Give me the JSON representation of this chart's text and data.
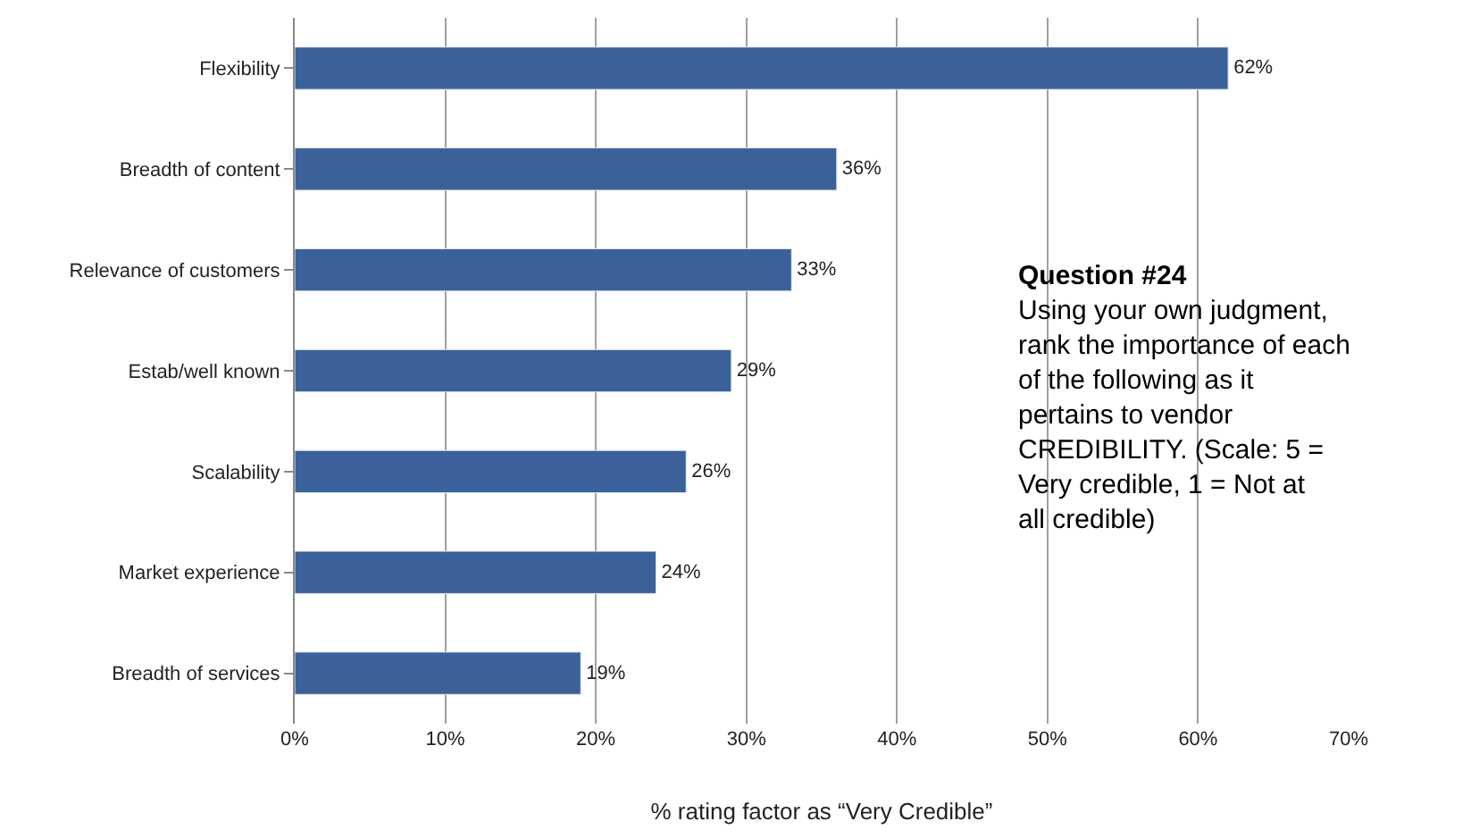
{
  "chart_data": {
    "type": "bar",
    "orientation": "horizontal",
    "xlabel": "% rating factor as “Very Credible”",
    "categories": [
      "Flexibility",
      "Breadth of content",
      "Relevance of customers",
      "Estab/well known",
      "Scalability",
      "Market experience",
      "Breadth of services"
    ],
    "values": [
      62,
      36,
      33,
      29,
      26,
      24,
      19
    ],
    "color": "#3a6199",
    "value_labels": [
      "62%",
      "36%",
      "33%",
      "29%",
      "26%",
      "24%",
      "19%"
    ],
    "xlim": [
      0,
      70
    ],
    "xticks": [
      {
        "value": 0,
        "label": "0%"
      },
      {
        "value": 10,
        "label": "10%"
      },
      {
        "value": 20,
        "label": "20%"
      },
      {
        "value": 30,
        "label": "30%"
      },
      {
        "value": 40,
        "label": "40%"
      },
      {
        "value": 50,
        "label": "50%"
      },
      {
        "value": 60,
        "label": "60%"
      },
      {
        "value": 70,
        "label": "70%"
      }
    ],
    "grid": "x",
    "legend": false,
    "annotations": [
      "Question #24",
      "Using your own judgment, rank the importance of each of the following as it pertains to vendor CREDIBILITY. (Scale: 5 = Very credible, 1 = Not at all credible)"
    ]
  }
}
